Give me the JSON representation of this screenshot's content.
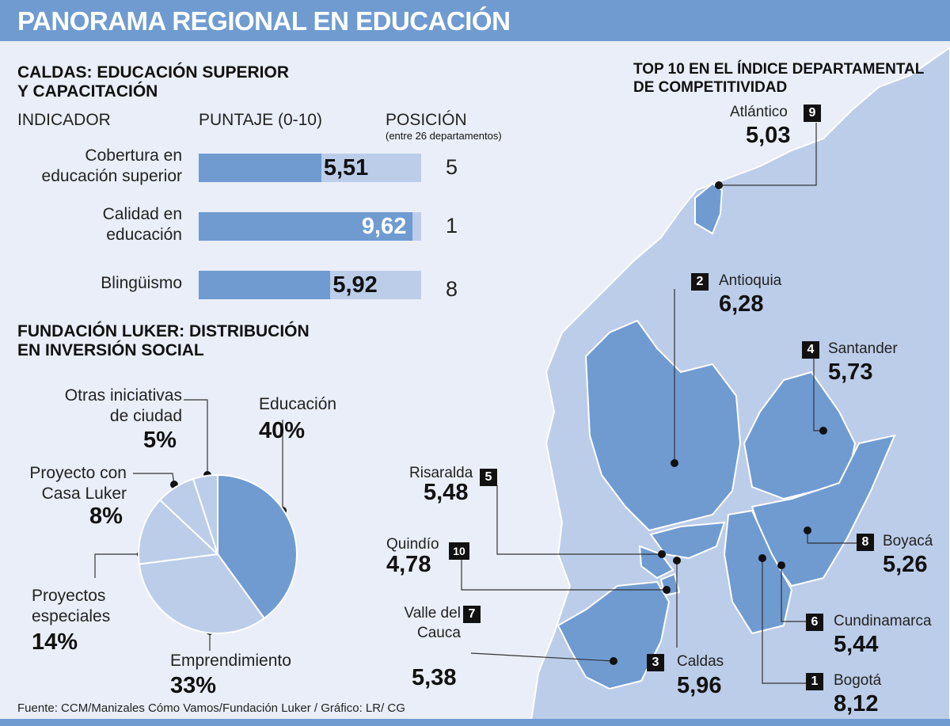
{
  "title": "PANORAMA REGIONAL EN EDUCACIÓN",
  "colors": {
    "header": "#6f9bd1",
    "dark_blue": "#6f9bd1",
    "light_blue": "#bccde9",
    "background": "#eaeef8"
  },
  "chart_data": [
    {
      "type": "bar",
      "title": "CALDAS: EDUCACIÓN SUPERIOR Y CAPACITACIÓN",
      "title_lines": [
        "CALDAS: EDUCACIÓN SUPERIOR",
        "Y CAPACITACIÓN"
      ],
      "columns": {
        "indicator": "INDICADOR",
        "score": "PUNTAJE (0-10)",
        "position": "POSICIÓN",
        "position_note": "(entre 26 departamentos)"
      },
      "xlim": [
        0,
        10
      ],
      "rows": [
        {
          "label_lines": [
            "Cobertura en",
            "educación superior"
          ],
          "value": 5.51,
          "value_label": "5,51",
          "position": "5"
        },
        {
          "label_lines": [
            "Calidad en",
            "educación"
          ],
          "value": 9.62,
          "value_label": "9,62",
          "position": "1"
        },
        {
          "label_lines": [
            "Blingüismo"
          ],
          "value": 5.92,
          "value_label": "5,92",
          "position": "8"
        }
      ]
    },
    {
      "type": "pie",
      "title_lines": [
        "FUNDACIÓN LUKER: DISTRIBUCIÓN",
        "EN INVERSIÓN SOCIAL"
      ],
      "slices": [
        {
          "label_lines": [
            "Educación"
          ],
          "value": 40,
          "value_label": "40%",
          "color": "#6f9bd1"
        },
        {
          "label_lines": [
            "Emprendimiento"
          ],
          "value": 33,
          "value_label": "33%",
          "color": "#bccde9"
        },
        {
          "label_lines": [
            "Proyectos",
            "especiales"
          ],
          "value": 14,
          "value_label": "14%",
          "color": "#bccde9"
        },
        {
          "label_lines": [
            "Proyecto con",
            "Casa Luker"
          ],
          "value": 8,
          "value_label": "8%",
          "color": "#bccde9"
        },
        {
          "label_lines": [
            "Otras iniciativas",
            "de ciudad"
          ],
          "value": 5,
          "value_label": "5%",
          "color": "#bccde9"
        }
      ]
    }
  ],
  "map": {
    "title_lines": [
      "TOP 10 EN EL ÍNDICE DEPARTAMENTAL",
      "DE COMPETITIVIDAD"
    ],
    "departments": [
      {
        "rank": "9",
        "name": "Atlántico",
        "value": "5,03"
      },
      {
        "rank": "2",
        "name": "Antioquia",
        "value": "6,28"
      },
      {
        "rank": "4",
        "name": "Santander",
        "value": "5,73"
      },
      {
        "rank": "5",
        "name": "Risaralda",
        "value": "5,48"
      },
      {
        "rank": "10",
        "name": "Quindío",
        "value": "4,78"
      },
      {
        "rank": "8",
        "name": "Boyacá",
        "value": "5,26"
      },
      {
        "rank": "7",
        "name_lines": [
          "Valle del",
          "Cauca"
        ],
        "value": "5,38"
      },
      {
        "rank": "6",
        "name": "Cundinamarca",
        "value": "5,44"
      },
      {
        "rank": "3",
        "name": "Caldas",
        "value": "5,96"
      },
      {
        "rank": "1",
        "name": "Bogotá",
        "value": "8,12"
      }
    ]
  },
  "source": "Fuente: CCM/Manizales Cómo Vamos/Fundación Luker / Gráfico: LR/ CG"
}
